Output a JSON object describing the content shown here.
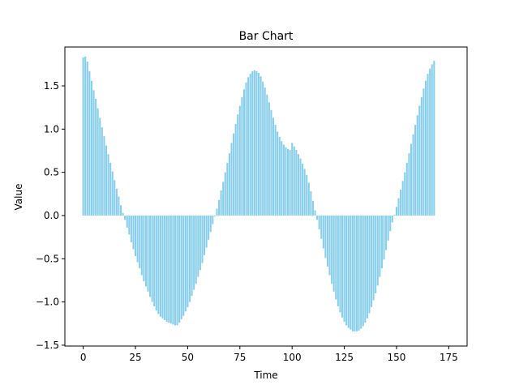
{
  "chart_data": {
    "type": "bar",
    "title": "Bar Chart",
    "xlabel": "Time",
    "ylabel": "Value",
    "xlim": [
      -8.8,
      183.8
    ],
    "ylim": [
      -1.51,
      1.95
    ],
    "x_ticks": [
      0,
      25,
      50,
      75,
      100,
      125,
      150,
      175
    ],
    "x_tick_labels": [
      "0",
      "25",
      "50",
      "75",
      "100",
      "125",
      "150",
      "175"
    ],
    "y_ticks": [
      -1.5,
      -1.0,
      -0.5,
      0.0,
      0.5,
      1.0,
      1.5
    ],
    "y_tick_labels": [
      "−1.5",
      "−1.0",
      "−0.5",
      "0.0",
      "0.5",
      "1.0",
      "1.5"
    ],
    "bar_color": "#87ceeb",
    "grid": false,
    "legend": false,
    "series": [
      {
        "x_start": 0,
        "values": [
          1.83,
          1.84,
          1.78,
          1.67,
          1.56,
          1.45,
          1.35,
          1.24,
          1.13,
          1.02,
          0.92,
          0.81,
          0.71,
          0.61,
          0.51,
          0.41,
          0.31,
          0.22,
          0.12,
          0.03,
          -0.05,
          -0.14,
          -0.22,
          -0.31,
          -0.39,
          -0.47,
          -0.54,
          -0.61,
          -0.69,
          -0.76,
          -0.82,
          -0.88,
          -0.94,
          -1.0,
          -1.05,
          -1.1,
          -1.14,
          -1.17,
          -1.19,
          -1.21,
          -1.23,
          -1.24,
          -1.25,
          -1.26,
          -1.27,
          -1.27,
          -1.24,
          -1.2,
          -1.16,
          -1.11,
          -1.06,
          -1.0,
          -0.93,
          -0.86,
          -0.79,
          -0.71,
          -0.63,
          -0.55,
          -0.46,
          -0.37,
          -0.28,
          -0.19,
          -0.1,
          -0.01,
          0.08,
          0.18,
          0.29,
          0.39,
          0.5,
          0.61,
          0.72,
          0.84,
          0.95,
          1.06,
          1.17,
          1.27,
          1.37,
          1.46,
          1.54,
          1.6,
          1.64,
          1.67,
          1.68,
          1.67,
          1.65,
          1.61,
          1.55,
          1.48,
          1.4,
          1.31,
          1.22,
          1.13,
          1.05,
          0.97,
          0.91,
          0.86,
          0.82,
          0.79,
          0.77,
          0.76,
          0.84,
          0.8,
          0.76,
          0.71,
          0.66,
          0.6,
          0.54,
          0.47,
          0.38,
          0.28,
          0.17,
          0.06,
          -0.05,
          -0.16,
          -0.27,
          -0.38,
          -0.49,
          -0.59,
          -0.69,
          -0.79,
          -0.88,
          -0.97,
          -1.05,
          -1.12,
          -1.18,
          -1.23,
          -1.27,
          -1.3,
          -1.32,
          -1.34,
          -1.34,
          -1.34,
          -1.33,
          -1.31,
          -1.28,
          -1.24,
          -1.19,
          -1.13,
          -1.06,
          -0.98,
          -0.9,
          -0.81,
          -0.71,
          -0.61,
          -0.51,
          -0.4,
          -0.29,
          -0.18,
          -0.08,
          0.01,
          0.1,
          0.2,
          0.3,
          0.4,
          0.5,
          0.61,
          0.72,
          0.83,
          0.94,
          1.05,
          1.16,
          1.27,
          1.37,
          1.47,
          1.56,
          1.64,
          1.7,
          1.75,
          1.79
        ]
      }
    ]
  }
}
